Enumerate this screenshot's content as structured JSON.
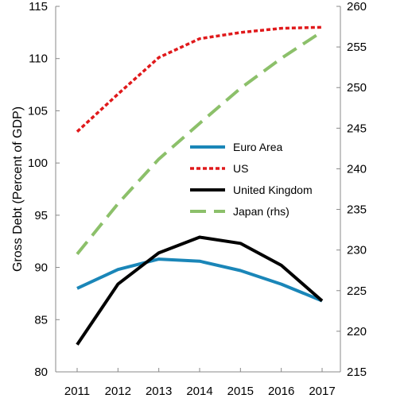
{
  "chart_data": {
    "type": "line",
    "title": "",
    "xlabel": "",
    "ylabel": "Gross Debt (Percent of GDP)",
    "x": [
      2011,
      2012,
      2013,
      2014,
      2015,
      2016,
      2017
    ],
    "x_ticks": [
      "2011",
      "2012",
      "2013",
      "2014",
      "2015",
      "2016",
      "2017"
    ],
    "ylim": [
      80,
      115
    ],
    "y_ticks": [
      "80",
      "85",
      "90",
      "95",
      "100",
      "105",
      "110",
      "115"
    ],
    "y2lim": [
      215,
      260
    ],
    "y2_ticks": [
      "215",
      "220",
      "225",
      "230",
      "235",
      "240",
      "245",
      "250",
      "255",
      "260"
    ],
    "grid": false,
    "legend_position": "center-right",
    "series": [
      {
        "name": "Euro Area",
        "axis": "left",
        "color": "#1a86b8",
        "style": "solid",
        "values": [
          88.0,
          89.8,
          90.8,
          90.6,
          89.7,
          88.4,
          86.8
        ]
      },
      {
        "name": "US",
        "axis": "left",
        "color": "#e0191b",
        "style": "dotted",
        "values": [
          103.0,
          106.6,
          110.1,
          111.9,
          112.5,
          112.9,
          113.0
        ]
      },
      {
        "name": "United Kingdom",
        "axis": "left",
        "color": "#000000",
        "style": "solid",
        "values": [
          82.6,
          88.4,
          91.4,
          92.9,
          92.3,
          90.2,
          86.8
        ]
      },
      {
        "name": "Japan (rhs)",
        "axis": "right",
        "color": "#8cc06a",
        "style": "dashed",
        "values": [
          229.5,
          235.7,
          241.2,
          245.6,
          249.9,
          253.6,
          256.9
        ]
      }
    ]
  }
}
